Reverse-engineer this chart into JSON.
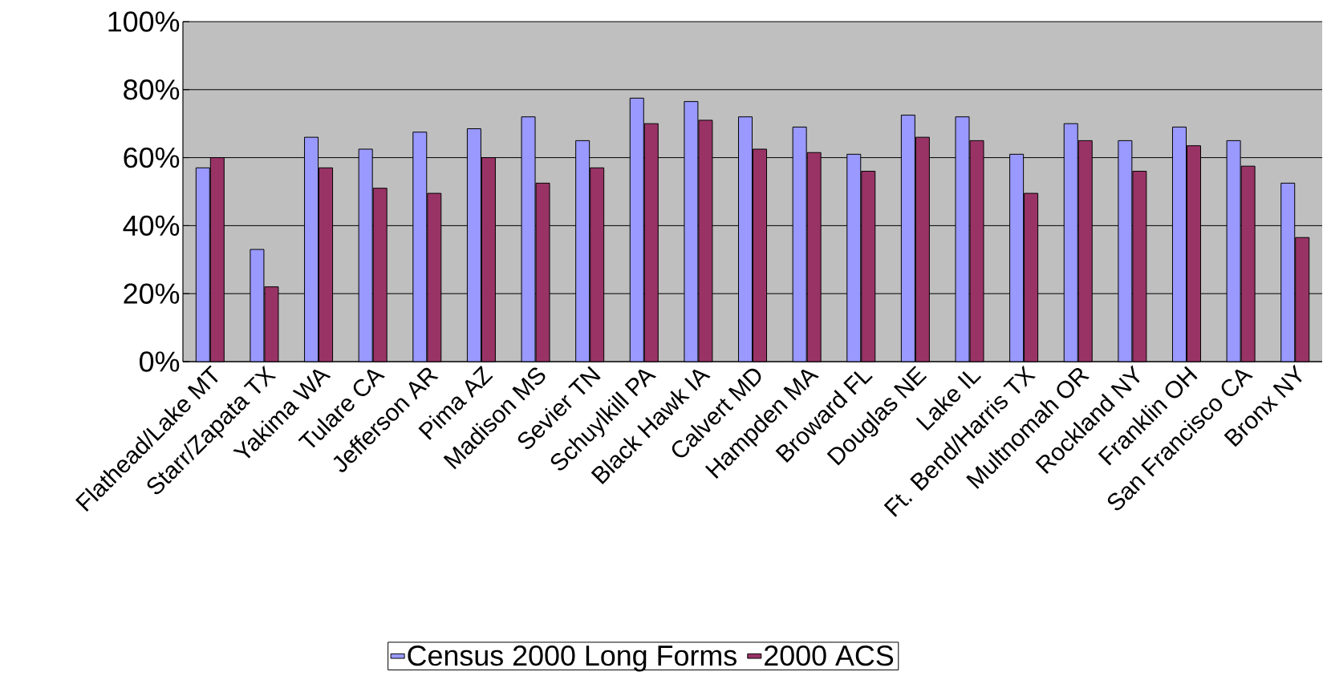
{
  "chart_data": {
    "type": "bar",
    "categories": [
      "Flathead/Lake MT",
      "Starr/Zapata TX",
      "Yakima WA",
      "Tulare CA",
      "Jefferson AR",
      "Pima AZ",
      "Madison MS",
      "Sevier TN",
      "Schuylkill PA",
      "Black Hawk IA",
      "Calvert MD",
      "Hampden MA",
      "Broward FL",
      "Douglas NE",
      "Lake IL",
      "Ft. Bend/Harris TX",
      "Multnomah OR",
      "Rockland NY",
      "Franklin OH",
      "San Francisco CA",
      "Bronx NY"
    ],
    "series": [
      {
        "name": "Census 2000 Long Forms",
        "color": "#9999ff",
        "values": [
          57,
          33,
          66,
          62.5,
          67.5,
          68.5,
          72,
          65,
          77.5,
          76.5,
          72,
          69,
          61,
          72.5,
          72,
          61,
          70,
          65,
          69,
          65,
          52.5
        ]
      },
      {
        "name": "2000 ACS",
        "color": "#993366",
        "values": [
          60,
          22,
          57,
          51,
          49.5,
          60,
          52.5,
          57,
          70,
          71,
          62.5,
          61.5,
          56,
          66,
          65,
          49.5,
          65,
          56,
          63.5,
          57.5,
          36.5
        ]
      }
    ],
    "ylim": [
      0,
      100
    ],
    "yticks": [
      {
        "value": 0,
        "label": "0%"
      },
      {
        "value": 20,
        "label": "20%"
      },
      {
        "value": 40,
        "label": "40%"
      },
      {
        "value": 60,
        "label": "60%"
      },
      {
        "value": 80,
        "label": "80%"
      },
      {
        "value": 100,
        "label": "100%"
      }
    ],
    "grid": "y",
    "legend": "bottom"
  }
}
